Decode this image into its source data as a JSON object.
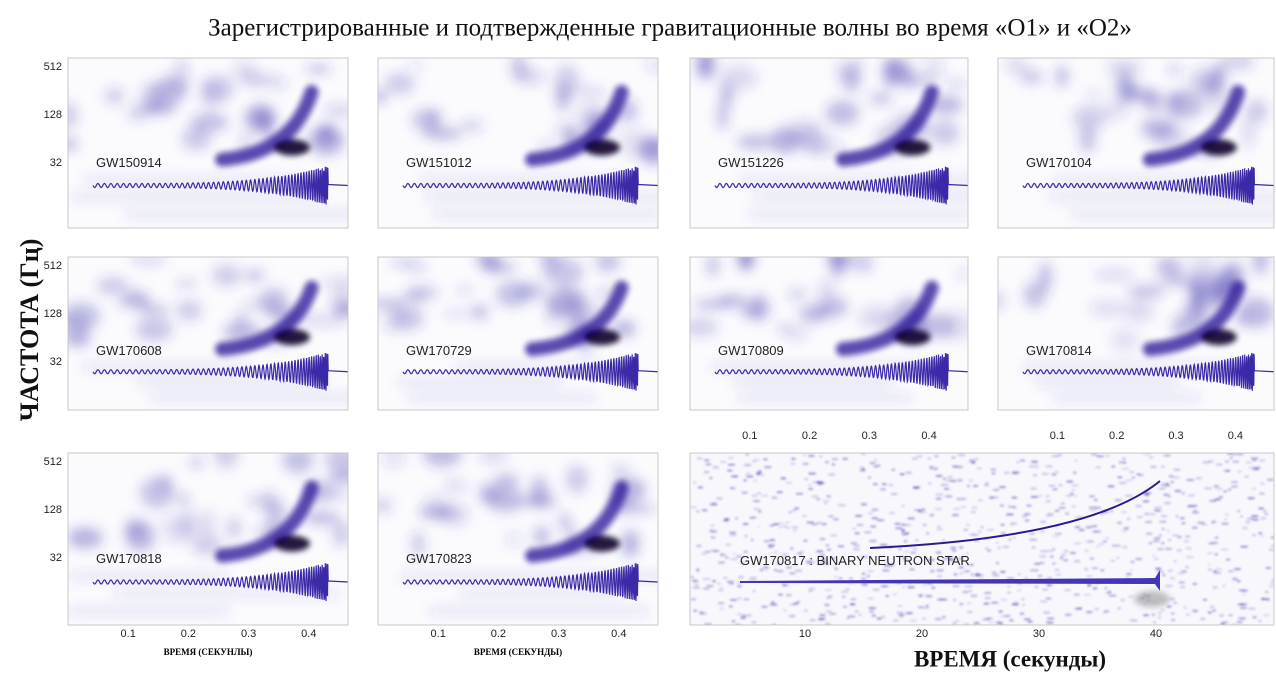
{
  "title": "Зарегистрированные и подтвержденные гравитационные волны во время «О1» и «О2»",
  "y_axis_label": "ЧАСТОТА (Гц)",
  "x_axis_label": "ВРЕМЯ (секунды)",
  "frequency_ticks": [
    "512",
    "128",
    "32"
  ],
  "time_ticks": [
    "0.1",
    "0.2",
    "0.3",
    "0.4"
  ],
  "small_time_labels": [
    "ВРЕМЯ (СЕКУНЛЫ)",
    "ВРЕМЯ (СЕКУНДЫ)"
  ],
  "panels": [
    {
      "label": "GW150914"
    },
    {
      "label": "GW151012"
    },
    {
      "label": "GW151226"
    },
    {
      "label": "GW170104"
    },
    {
      "label": "GW170608"
    },
    {
      "label": "GW170729"
    },
    {
      "label": "GW170809"
    },
    {
      "label": "GW170814"
    },
    {
      "label": "GW170818"
    },
    {
      "label": "GW170823"
    }
  ],
  "bns_panel": {
    "label": "GW170817 : BINARY NEUTRON STAR",
    "time_ticks": [
      "10",
      "20",
      "30",
      "40"
    ]
  }
}
